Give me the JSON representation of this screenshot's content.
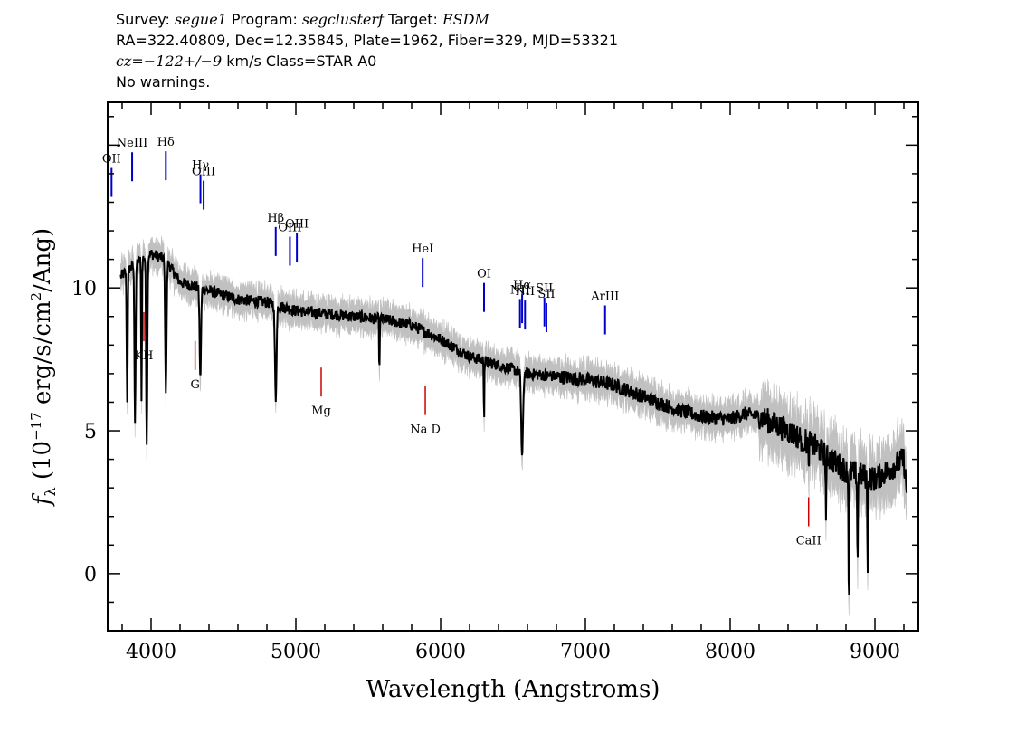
{
  "header": {
    "line1": {
      "survey_label": "Survey: ",
      "survey": "segue1",
      "program_label": " Program: ",
      "program": "segclusterf",
      "target_label": " Target: ",
      "target": "ESDM"
    },
    "line2": "RA=322.40809, Dec=12.35845, Plate=1962, Fiber=329, MJD=53321",
    "line3": {
      "cz": "cz=−122+/−9",
      "rest": " km/s Class=STAR A0"
    },
    "line4": "No warnings."
  },
  "chart_data": {
    "type": "line",
    "xlabel": "Wavelength (Angstroms)",
    "ylabel_prefix": "f",
    "ylabel_sub": "λ",
    "ylabel_main": " (10",
    "ylabel_exp": "−17",
    "ylabel_unit": " erg/s/cm",
    "ylabel_exp2": "2",
    "ylabel_end": "/Ang)",
    "xlim": [
      3700,
      9300
    ],
    "ylim": [
      -2,
      16.5
    ],
    "xticks": [
      4000,
      5000,
      6000,
      7000,
      8000,
      9000
    ],
    "yticks": [
      0,
      5,
      10
    ],
    "colors": {
      "flux": "#000000",
      "error": "#c0c0c0",
      "emission": "#0000cc",
      "absorption": "#cc0000"
    },
    "continuum": [
      [
        3790,
        10.4
      ],
      [
        3900,
        10.9
      ],
      [
        4000,
        11.2
      ],
      [
        4100,
        11.0
      ],
      [
        4200,
        10.2
      ],
      [
        4400,
        9.9
      ],
      [
        4600,
        9.6
      ],
      [
        4800,
        9.5
      ],
      [
        5000,
        9.2
      ],
      [
        5200,
        9.1
      ],
      [
        5400,
        9.0
      ],
      [
        5600,
        8.9
      ],
      [
        5800,
        8.7
      ],
      [
        6000,
        8.2
      ],
      [
        6200,
        7.6
      ],
      [
        6400,
        7.3
      ],
      [
        6600,
        7.0
      ],
      [
        6800,
        6.9
      ],
      [
        7000,
        6.8
      ],
      [
        7200,
        6.6
      ],
      [
        7400,
        6.2
      ],
      [
        7600,
        5.8
      ],
      [
        7800,
        5.5
      ],
      [
        8000,
        5.4
      ],
      [
        8100,
        5.6
      ],
      [
        8200,
        5.5
      ],
      [
        8400,
        5.0
      ],
      [
        8600,
        4.4
      ],
      [
        8800,
        3.6
      ],
      [
        9000,
        3.3
      ],
      [
        9200,
        4.0
      ],
      [
        9220,
        2.8
      ]
    ],
    "absorption_features": [
      [
        3835,
        4.5,
        10
      ],
      [
        3889,
        5.5,
        12
      ],
      [
        3934,
        5.0,
        8
      ],
      [
        3970,
        6.5,
        12
      ],
      [
        4102,
        4.5,
        14
      ],
      [
        4340,
        3.2,
        14
      ],
      [
        4861,
        3.3,
        16
      ],
      [
        5577,
        2.0,
        6
      ],
      [
        6300,
        2.0,
        6
      ],
      [
        6563,
        3.0,
        18
      ],
      [
        8498,
        0.8,
        6
      ],
      [
        8542,
        1.0,
        6
      ],
      [
        8662,
        2.0,
        8
      ],
      [
        8820,
        4.5,
        8
      ],
      [
        8880,
        3.0,
        8
      ],
      [
        8950,
        3.0,
        8
      ]
    ],
    "emission_lines": [
      {
        "label": "OII",
        "x": 3727
      },
      {
        "label": "NeIII",
        "x": 3869
      },
      {
        "label": "Hδ",
        "x": 4102
      },
      {
        "label": "Hγ",
        "x": 4341
      },
      {
        "label": "OIII",
        "x": 4363
      },
      {
        "label": "Hβ",
        "x": 4861
      },
      {
        "label": "OIII",
        "x": 4959
      },
      {
        "label": "OIII",
        "x": 5007
      },
      {
        "label": "HeI",
        "x": 5876
      },
      {
        "label": "OI",
        "x": 6300
      },
      {
        "label": "NII",
        "x": 6548
      },
      {
        "label": "Hα",
        "x": 6563
      },
      {
        "label": "NII",
        "x": 6583
      },
      {
        "label": "SII",
        "x": 6717
      },
      {
        "label": "SII",
        "x": 6731
      },
      {
        "label": "ArIII",
        "x": 7136
      }
    ],
    "absorption_lines": [
      {
        "label": "KH",
        "x": 3950
      },
      {
        "label": "G",
        "x": 4304
      },
      {
        "label": "Mg",
        "x": 5175
      },
      {
        "label": "Na D",
        "x": 5894
      },
      {
        "label": "CaII",
        "x": 8542
      }
    ]
  }
}
